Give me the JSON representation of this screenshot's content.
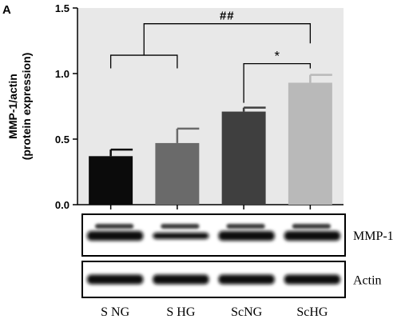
{
  "panel_label": "A",
  "chart_data": {
    "type": "bar",
    "categories": [
      "S NG",
      "S HG",
      "ScNG",
      "ScHG"
    ],
    "values": [
      0.37,
      0.47,
      0.71,
      0.93
    ],
    "errors": [
      0.05,
      0.11,
      0.03,
      0.06
    ],
    "colors": [
      "#0b0b0b",
      "#6a6a6a",
      "#3f3f3f",
      "#b9b9b9"
    ],
    "ylabel_line1": "MMP-1/actin",
    "ylabel_line2": "(protein expression)",
    "ylim": [
      0,
      1.5
    ],
    "yticks": [
      0.0,
      0.5,
      1.0,
      1.5
    ],
    "ytick_labels": [
      "0.0",
      "0.5",
      "1.0",
      "1.5"
    ],
    "grid": false,
    "background": "#e8e8e8",
    "significance": [
      {
        "label": "*",
        "type": "pair",
        "groups": [
          "ScNG",
          "ScHG"
        ]
      },
      {
        "label": "##",
        "type": "group-vs-group",
        "groups_left": [
          "S NG",
          "S HG"
        ],
        "groups_right": [
          "ScHG"
        ]
      }
    ]
  },
  "blot": {
    "rows": [
      {
        "label": "MMP-1",
        "bands": "double"
      },
      {
        "label": "Actin",
        "bands": "single"
      }
    ],
    "lane_labels": [
      "S NG",
      "S HG",
      "ScNG",
      "ScHG"
    ]
  }
}
